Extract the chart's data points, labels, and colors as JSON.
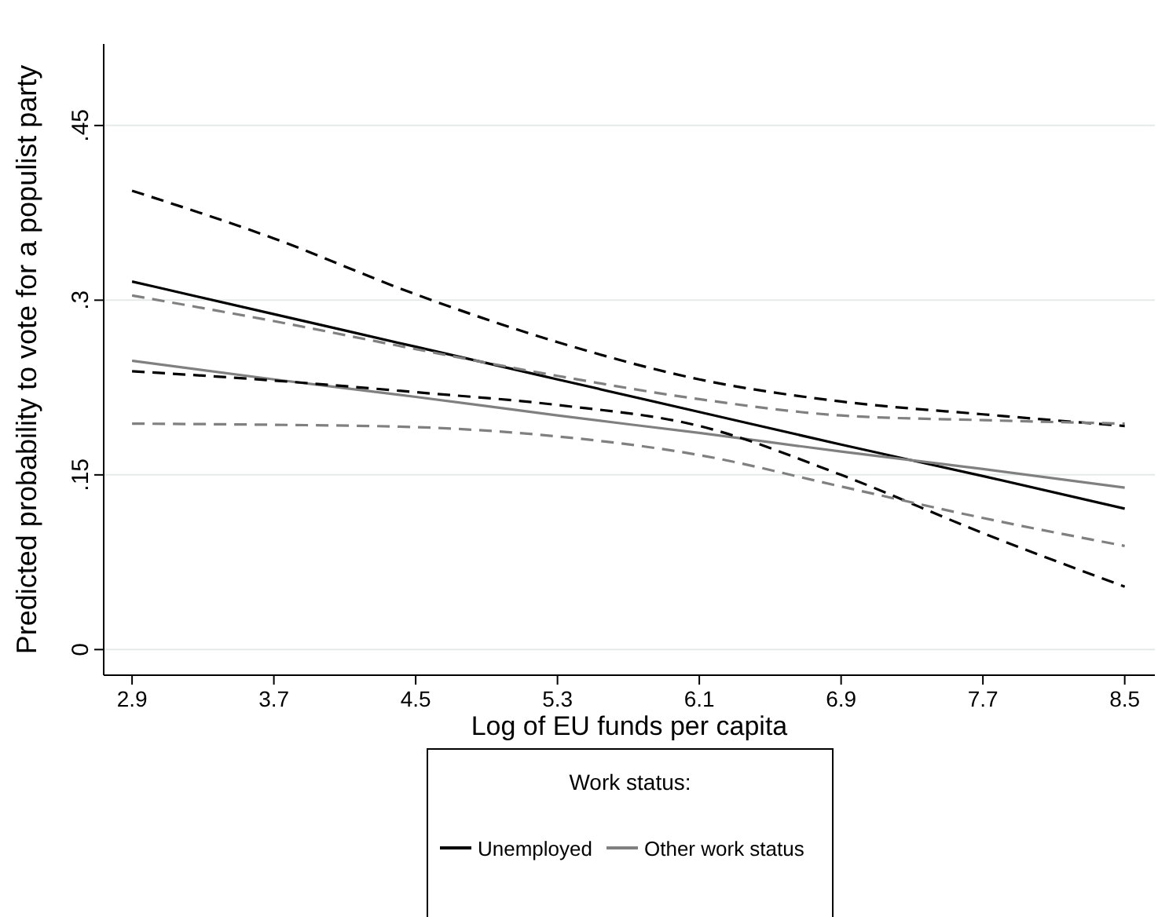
{
  "chart_data": {
    "type": "line",
    "xlabel": "Log of EU funds per capita",
    "ylabel": "Predicted probability to vote for a populist party",
    "x": [
      2.9,
      3.7,
      4.5,
      5.3,
      6.1,
      6.9,
      7.7,
      8.5
    ],
    "xlim": [
      2.74,
      8.67
    ],
    "xticks": [
      2.9,
      3.7,
      4.5,
      5.3,
      6.1,
      6.9,
      7.7,
      8.5
    ],
    "ylim": [
      -0.022,
      0.52
    ],
    "yticks": [
      {
        "value": 0,
        "label": "0"
      },
      {
        "value": 0.15,
        "label": ".15"
      },
      {
        "value": 0.3,
        "label": ".3"
      },
      {
        "value": 0.45,
        "label": ".45"
      }
    ],
    "grid": "y",
    "legend": "bottom",
    "legend_title": "Work status:",
    "marker": "none",
    "series": [
      {
        "name": "Unemployed",
        "color": "#000000",
        "line_style": "solid",
        "values": [
          0.316,
          0.288,
          0.26,
          0.232,
          0.204,
          0.176,
          0.149,
          0.121
        ]
      },
      {
        "name": "Other work status",
        "color": "#808080",
        "line_style": "solid",
        "values": [
          0.248,
          0.232,
          0.217,
          0.201,
          0.186,
          0.17,
          0.155,
          0.139
        ]
      },
      {
        "color": "#000000",
        "line_style": "dashed",
        "values": [
          0.394,
          0.353,
          0.305,
          0.264,
          0.232,
          0.213,
          0.202,
          0.192
        ]
      },
      {
        "color": "#000000",
        "line_style": "dashed",
        "values": [
          0.239,
          0.231,
          0.221,
          0.21,
          0.192,
          0.15,
          0.1,
          0.054
        ]
      },
      {
        "color": "#808080",
        "line_style": "dashed",
        "values": [
          0.304,
          0.282,
          0.258,
          0.235,
          0.215,
          0.201,
          0.197,
          0.194
        ]
      },
      {
        "color": "#808080",
        "line_style": "dashed",
        "values": [
          0.194,
          0.193,
          0.191,
          0.183,
          0.167,
          0.14,
          0.113,
          0.089
        ]
      }
    ]
  }
}
